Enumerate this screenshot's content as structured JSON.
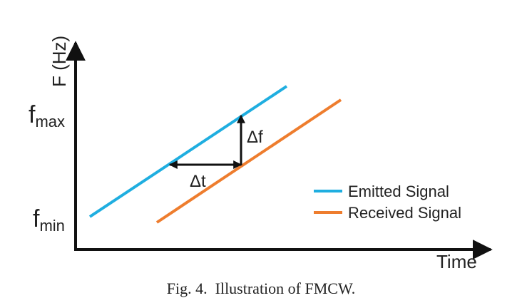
{
  "diagram": {
    "y_axis_label": "F (Hz)",
    "x_axis_label": "Time",
    "fmax": {
      "base": "f",
      "sub": "max"
    },
    "fmin": {
      "base": "f",
      "sub": "min"
    },
    "delta_f": "Δf",
    "delta_t": "Δt",
    "legend": [
      {
        "label": "Emitted Signal",
        "color": "#1FAEE0"
      },
      {
        "label": "Received Signal",
        "color": "#EE7D2E"
      }
    ],
    "axis_color": "#111111"
  },
  "caption": "Fig. 4.  Illustration of FMCW."
}
